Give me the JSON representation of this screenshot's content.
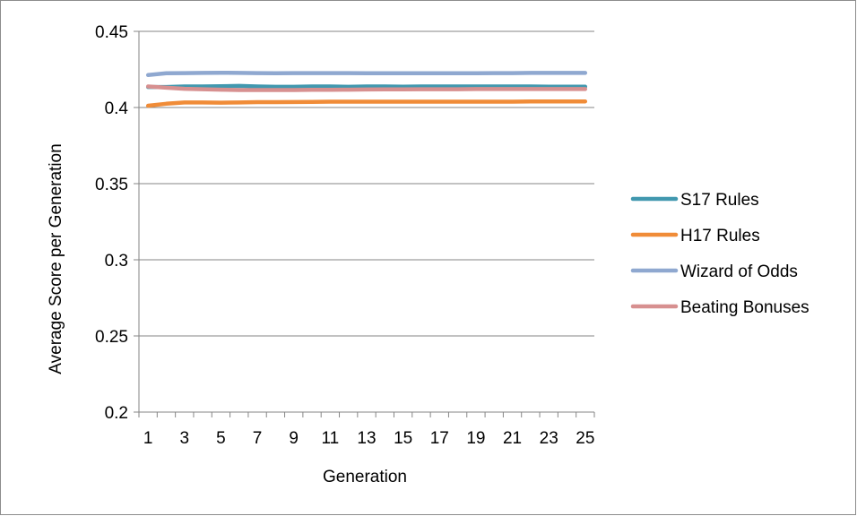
{
  "chart_data": {
    "type": "line",
    "title": "",
    "xlabel": "Generation",
    "ylabel": "Average Score per Generation",
    "x": [
      1,
      2,
      3,
      4,
      5,
      6,
      7,
      8,
      9,
      10,
      11,
      12,
      13,
      14,
      15,
      16,
      17,
      18,
      19,
      20,
      21,
      22,
      23,
      24,
      25
    ],
    "x_tick_labels": [
      "1",
      "3",
      "5",
      "7",
      "9",
      "11",
      "13",
      "15",
      "17",
      "19",
      "21",
      "23",
      "25"
    ],
    "ylim": [
      0.2,
      0.45
    ],
    "y_tick_labels": [
      "0.2",
      "0.25",
      "0.3",
      "0.35",
      "0.4",
      "0.45"
    ],
    "grid": "horizontal",
    "legend_position": "right",
    "series": [
      {
        "name": "S17 Rules",
        "color": "#4198AF",
        "values": [
          0.4135,
          0.4135,
          0.4138,
          0.4138,
          0.414,
          0.4142,
          0.4138,
          0.4136,
          0.4136,
          0.4138,
          0.4138,
          0.4136,
          0.4138,
          0.4138,
          0.4137,
          0.4138,
          0.4138,
          0.4138,
          0.4138,
          0.4138,
          0.4138,
          0.4138,
          0.4137,
          0.4137,
          0.4137
        ]
      },
      {
        "name": "H17 Rules",
        "color": "#F08C38",
        "values": [
          0.4012,
          0.4025,
          0.4033,
          0.4033,
          0.4032,
          0.4033,
          0.4035,
          0.4035,
          0.4036,
          0.4037,
          0.4038,
          0.4038,
          0.4038,
          0.4038,
          0.4038,
          0.4038,
          0.4038,
          0.4038,
          0.4038,
          0.4038,
          0.4038,
          0.404,
          0.404,
          0.404,
          0.404
        ]
      },
      {
        "name": "Wizard of Odds",
        "color": "#8FA8D0",
        "values": [
          0.4213,
          0.4225,
          0.4226,
          0.4227,
          0.4228,
          0.4227,
          0.4226,
          0.4225,
          0.4226,
          0.4226,
          0.4226,
          0.4226,
          0.4225,
          0.4225,
          0.4225,
          0.4225,
          0.4225,
          0.4225,
          0.4225,
          0.4226,
          0.4226,
          0.4227,
          0.4227,
          0.4227,
          0.4227
        ]
      },
      {
        "name": "Beating Bonuses",
        "color": "#D79090",
        "values": [
          0.4138,
          0.413,
          0.4123,
          0.412,
          0.4117,
          0.4115,
          0.4115,
          0.4115,
          0.4115,
          0.4116,
          0.4116,
          0.4117,
          0.4118,
          0.4119,
          0.4119,
          0.412,
          0.412,
          0.412,
          0.4121,
          0.4121,
          0.4121,
          0.4121,
          0.4121,
          0.4121,
          0.4121
        ]
      }
    ]
  }
}
